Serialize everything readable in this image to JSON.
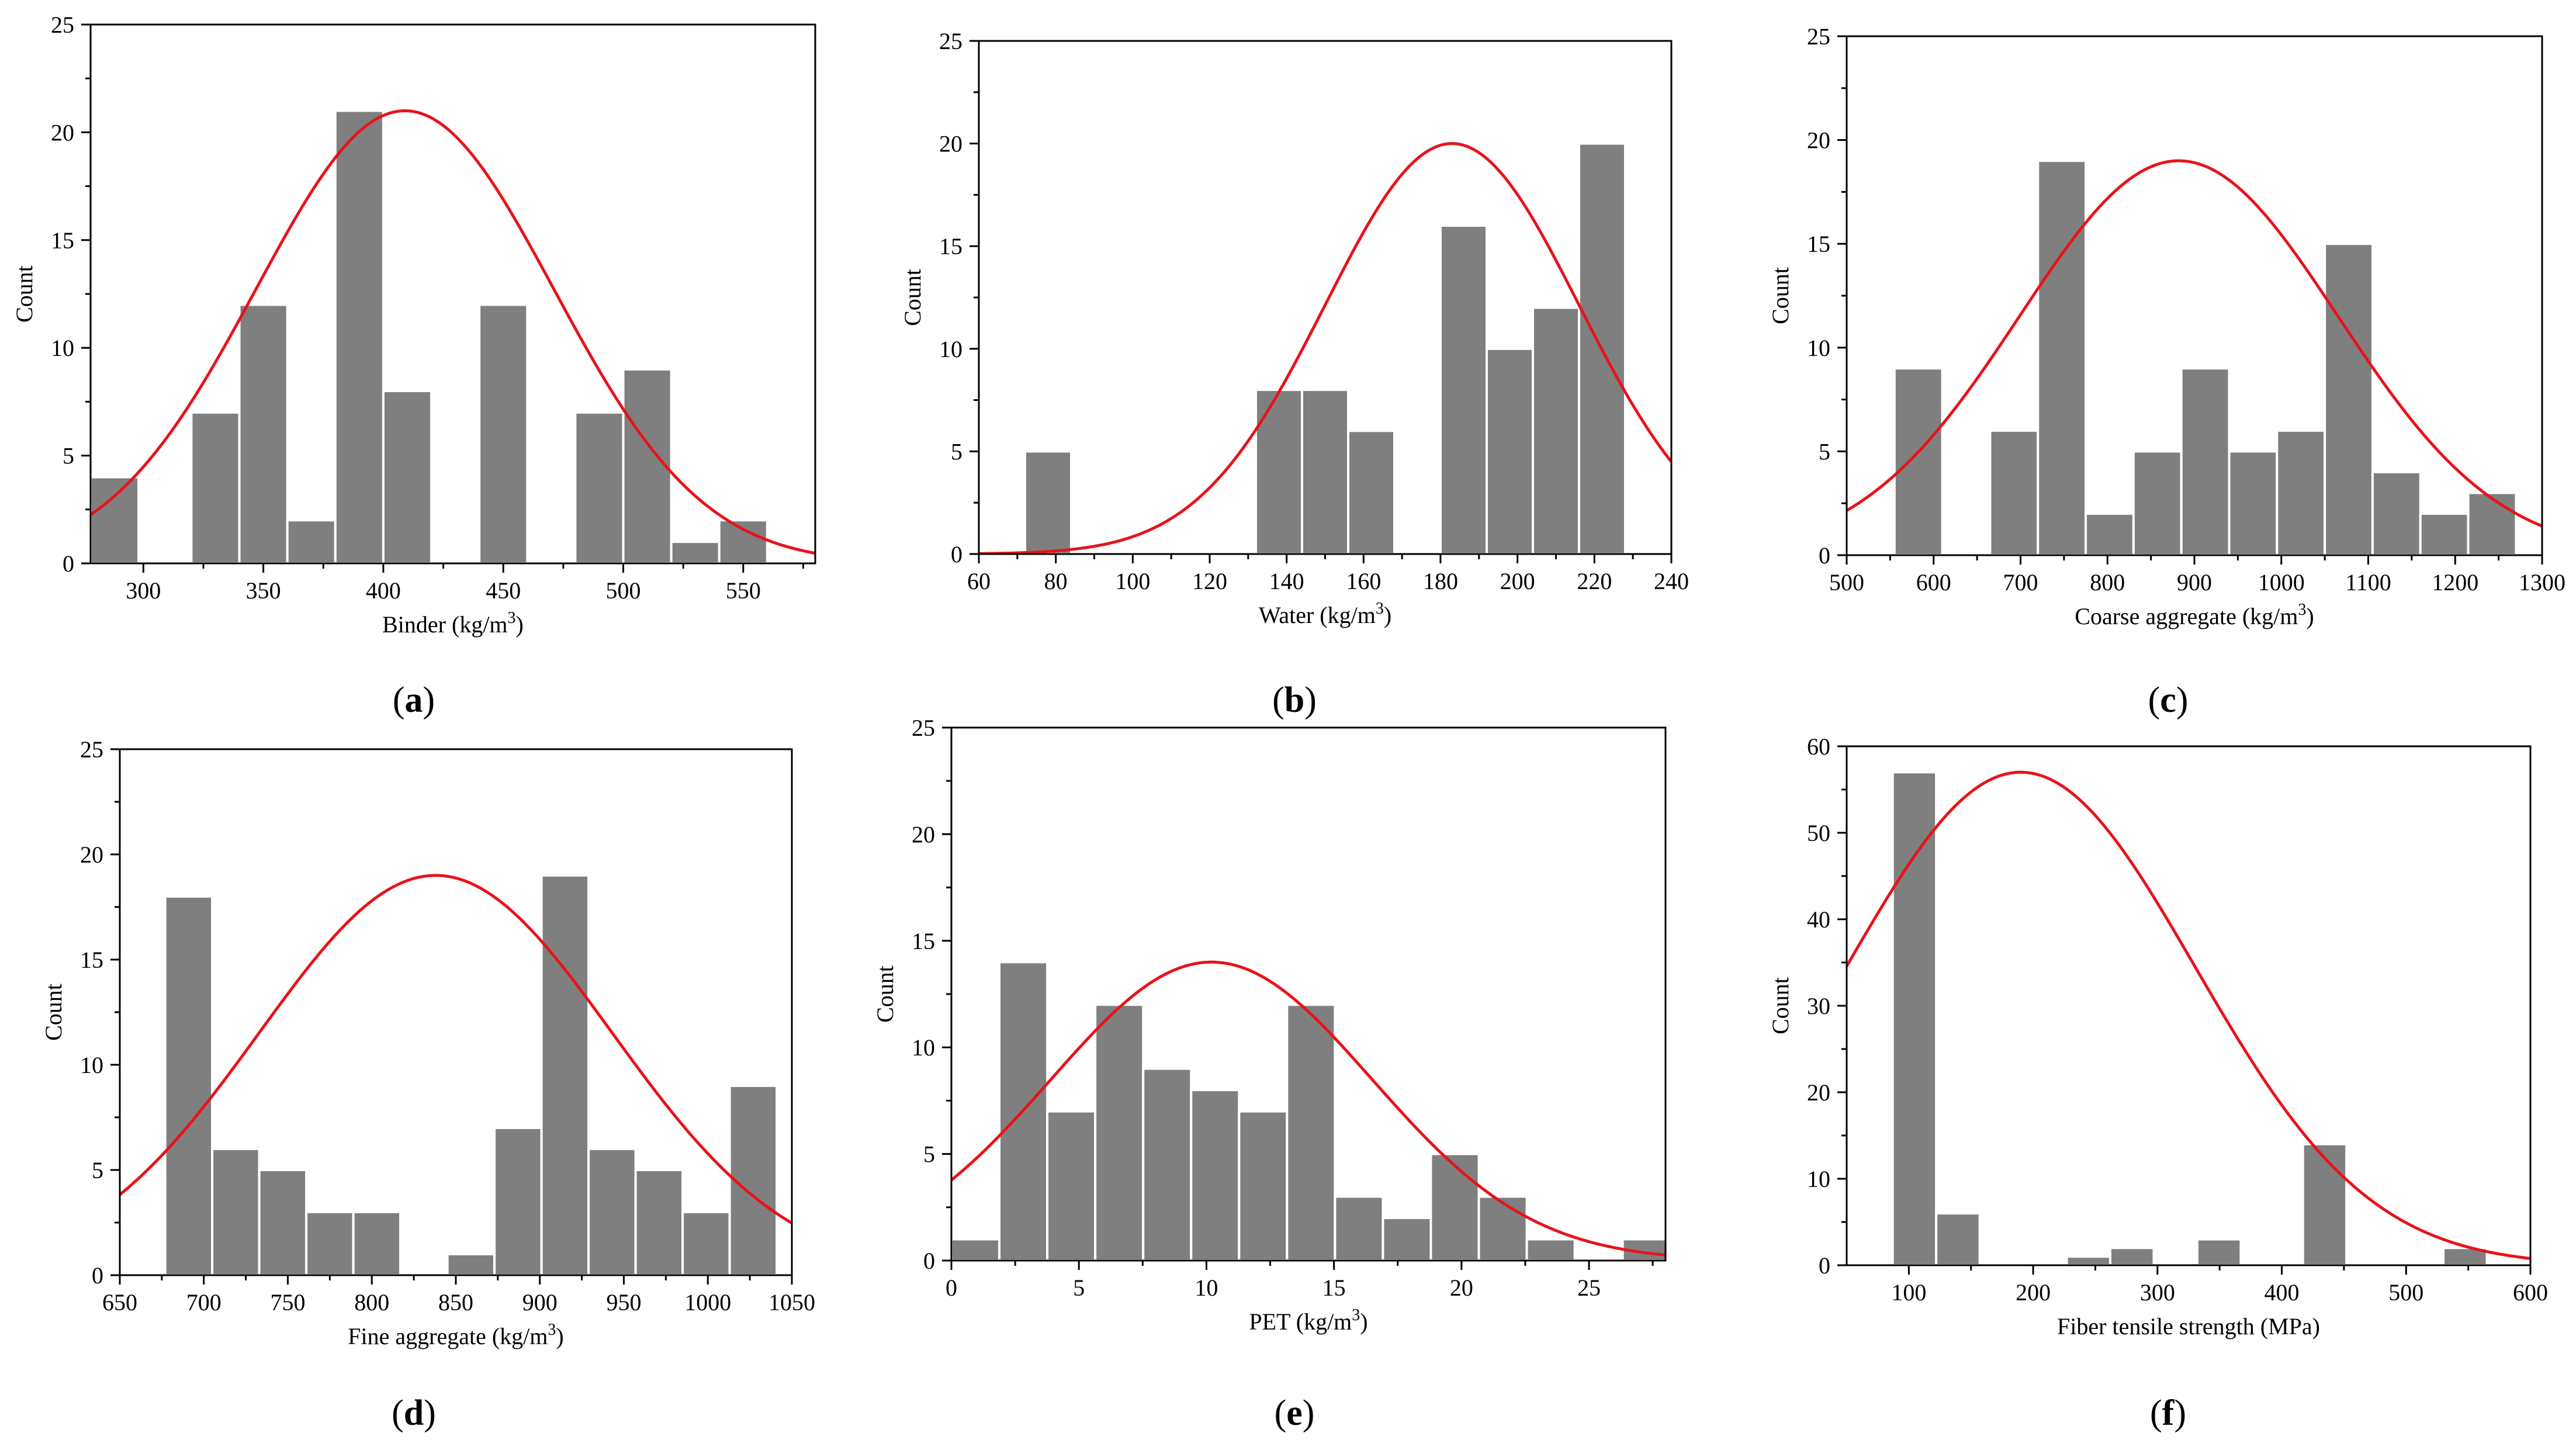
{
  "colors": {
    "bar": "#7f7f7f",
    "bar_edge": "#ffffff",
    "curve": "#e8131a",
    "axis": "#000000"
  },
  "chart_data": [
    {
      "type": "bar",
      "panel": "a",
      "caption": {
        "open": "(",
        "letter": "a",
        "close": ")"
      },
      "xlabel": {
        "main": "Binder (kg/m",
        "sup": "3",
        "tail": ")"
      },
      "ylabel": "Count",
      "xlim": [
        278,
        580
      ],
      "ylim": [
        0,
        25
      ],
      "xticks": [
        300,
        350,
        400,
        450,
        500,
        550
      ],
      "yticks": [
        0,
        5,
        10,
        15,
        20,
        25
      ],
      "bars": [
        {
          "x0": 278,
          "x1": 298,
          "count": 4
        },
        {
          "x0": 320,
          "x1": 340,
          "count": 7
        },
        {
          "x0": 340,
          "x1": 360,
          "count": 12
        },
        {
          "x0": 360,
          "x1": 380,
          "count": 2
        },
        {
          "x0": 380,
          "x1": 400,
          "count": 21
        },
        {
          "x0": 400,
          "x1": 420,
          "count": 8
        },
        {
          "x0": 440,
          "x1": 460,
          "count": 12
        },
        {
          "x0": 480,
          "x1": 500,
          "count": 7
        },
        {
          "x0": 500,
          "x1": 520,
          "count": 9
        },
        {
          "x0": 520,
          "x1": 540,
          "count": 1
        },
        {
          "x0": 540,
          "x1": 560,
          "count": 2
        }
      ],
      "curve": {
        "mean": 409,
        "sd": 62,
        "peak": 21
      }
    },
    {
      "type": "bar",
      "panel": "b",
      "caption": {
        "open": "(",
        "letter": "b",
        "close": ")"
      },
      "xlabel": {
        "main": "Water (kg/m",
        "sup": "3",
        "tail": ")"
      },
      "ylabel": "Count",
      "xlim": [
        60,
        240
      ],
      "ylim": [
        0,
        25
      ],
      "xticks": [
        60,
        80,
        100,
        120,
        140,
        160,
        180,
        200,
        220,
        240
      ],
      "yticks": [
        0,
        5,
        10,
        15,
        20,
        25
      ],
      "bars": [
        {
          "x0": 72,
          "x1": 84,
          "count": 5
        },
        {
          "x0": 132,
          "x1": 144,
          "count": 8
        },
        {
          "x0": 144,
          "x1": 156,
          "count": 8
        },
        {
          "x0": 156,
          "x1": 168,
          "count": 6
        },
        {
          "x0": 180,
          "x1": 192,
          "count": 16
        },
        {
          "x0": 192,
          "x1": 204,
          "count": 10
        },
        {
          "x0": 204,
          "x1": 216,
          "count": 12
        },
        {
          "x0": 216,
          "x1": 228,
          "count": 20
        }
      ],
      "curve": {
        "mean": 183,
        "sd": 33,
        "peak": 20
      }
    },
    {
      "type": "bar",
      "panel": "c",
      "caption": {
        "open": "(",
        "letter": "c",
        "close": ")"
      },
      "xlabel": {
        "main": "Coarse aggregate (kg/m",
        "sup": "3",
        "tail": ")"
      },
      "ylabel": "Count",
      "xlim": [
        500,
        1300
      ],
      "ylim": [
        0,
        25
      ],
      "xticks": [
        500,
        600,
        700,
        800,
        900,
        1000,
        1100,
        1200,
        1300
      ],
      "yticks": [
        0,
        5,
        10,
        15,
        20,
        25
      ],
      "bars": [
        {
          "x0": 555,
          "x1": 610,
          "count": 9
        },
        {
          "x0": 665,
          "x1": 720,
          "count": 6
        },
        {
          "x0": 720,
          "x1": 775,
          "count": 19
        },
        {
          "x0": 775,
          "x1": 830,
          "count": 2
        },
        {
          "x0": 830,
          "x1": 885,
          "count": 5
        },
        {
          "x0": 885,
          "x1": 940,
          "count": 9
        },
        {
          "x0": 940,
          "x1": 995,
          "count": 5
        },
        {
          "x0": 995,
          "x1": 1050,
          "count": 6
        },
        {
          "x0": 1050,
          "x1": 1105,
          "count": 15
        },
        {
          "x0": 1105,
          "x1": 1160,
          "count": 4
        },
        {
          "x0": 1160,
          "x1": 1215,
          "count": 2
        },
        {
          "x0": 1215,
          "x1": 1270,
          "count": 3
        }
      ],
      "curve": {
        "mean": 882,
        "sd": 183,
        "peak": 19
      }
    },
    {
      "type": "bar",
      "panel": "d",
      "caption": {
        "open": "(",
        "letter": "d",
        "close": ")"
      },
      "xlabel": {
        "main": "Fine aggregate (kg/m",
        "sup": "3",
        "tail": ")"
      },
      "ylabel": "Count",
      "xlim": [
        650,
        1050
      ],
      "ylim": [
        0,
        25
      ],
      "xticks": [
        650,
        700,
        750,
        800,
        850,
        900,
        950,
        1000,
        1050
      ],
      "yticks": [
        0,
        5,
        10,
        15,
        20,
        25
      ],
      "bars": [
        {
          "x0": 677,
          "x1": 705,
          "count": 18
        },
        {
          "x0": 705,
          "x1": 733,
          "count": 6
        },
        {
          "x0": 733,
          "x1": 761,
          "count": 5
        },
        {
          "x0": 761,
          "x1": 789,
          "count": 3
        },
        {
          "x0": 789,
          "x1": 817,
          "count": 3
        },
        {
          "x0": 845,
          "x1": 873,
          "count": 1
        },
        {
          "x0": 873,
          "x1": 901,
          "count": 7
        },
        {
          "x0": 901,
          "x1": 929,
          "count": 19
        },
        {
          "x0": 929,
          "x1": 957,
          "count": 6
        },
        {
          "x0": 957,
          "x1": 985,
          "count": 5
        },
        {
          "x0": 985,
          "x1": 1013,
          "count": 3
        },
        {
          "x0": 1013,
          "x1": 1041,
          "count": 9
        }
      ],
      "curve": {
        "mean": 838,
        "sd": 105,
        "peak": 19
      }
    },
    {
      "type": "bar",
      "panel": "e",
      "caption": {
        "open": "(",
        "letter": "e",
        "close": ")"
      },
      "xlabel": {
        "main": "PET (kg/m",
        "sup": "3",
        "tail": ")"
      },
      "ylabel": "Count",
      "xlim": [
        0,
        28
      ],
      "ylim": [
        0,
        25
      ],
      "xticks": [
        0,
        5,
        10,
        15,
        20,
        25
      ],
      "yticks": [
        0,
        5,
        10,
        15,
        20,
        25
      ],
      "bars": [
        {
          "x0": 0.0,
          "x1": 1.88,
          "count": 1
        },
        {
          "x0": 1.88,
          "x1": 3.76,
          "count": 14
        },
        {
          "x0": 3.76,
          "x1": 5.64,
          "count": 7
        },
        {
          "x0": 5.64,
          "x1": 7.52,
          "count": 12
        },
        {
          "x0": 7.52,
          "x1": 9.4,
          "count": 9
        },
        {
          "x0": 9.4,
          "x1": 11.28,
          "count": 8
        },
        {
          "x0": 11.28,
          "x1": 13.16,
          "count": 7
        },
        {
          "x0": 13.16,
          "x1": 15.04,
          "count": 12
        },
        {
          "x0": 15.04,
          "x1": 16.92,
          "count": 3
        },
        {
          "x0": 16.92,
          "x1": 18.8,
          "count": 2
        },
        {
          "x0": 18.8,
          "x1": 20.68,
          "count": 5
        },
        {
          "x0": 20.68,
          "x1": 22.56,
          "count": 3
        },
        {
          "x0": 22.56,
          "x1": 24.44,
          "count": 1
        },
        {
          "x0": 26.32,
          "x1": 28.2,
          "count": 1
        }
      ],
      "curve": {
        "mean": 10.2,
        "sd": 6.3,
        "peak": 14
      }
    },
    {
      "type": "bar",
      "panel": "f",
      "caption": {
        "open": "(",
        "letter": "f",
        "close": ")"
      },
      "xlabel": {
        "main": "Fiber tensile strength (MPa)",
        "sup": "",
        "tail": ""
      },
      "ylabel": "Count",
      "xlim": [
        50,
        600
      ],
      "ylim": [
        0,
        60
      ],
      "xticks": [
        100,
        200,
        300,
        400,
        500,
        600
      ],
      "yticks": [
        0,
        10,
        20,
        30,
        40,
        50,
        60
      ],
      "bars": [
        {
          "x0": 87,
          "x1": 122,
          "count": 57
        },
        {
          "x0": 122,
          "x1": 157,
          "count": 6
        },
        {
          "x0": 227,
          "x1": 262,
          "count": 1
        },
        {
          "x0": 262,
          "x1": 297,
          "count": 2
        },
        {
          "x0": 332,
          "x1": 367,
          "count": 3
        },
        {
          "x0": 417,
          "x1": 452,
          "count": 14
        },
        {
          "x0": 530,
          "x1": 565,
          "count": 2
        }
      ],
      "curve": {
        "mean": 190,
        "sd": 140,
        "peak": 57
      }
    }
  ]
}
